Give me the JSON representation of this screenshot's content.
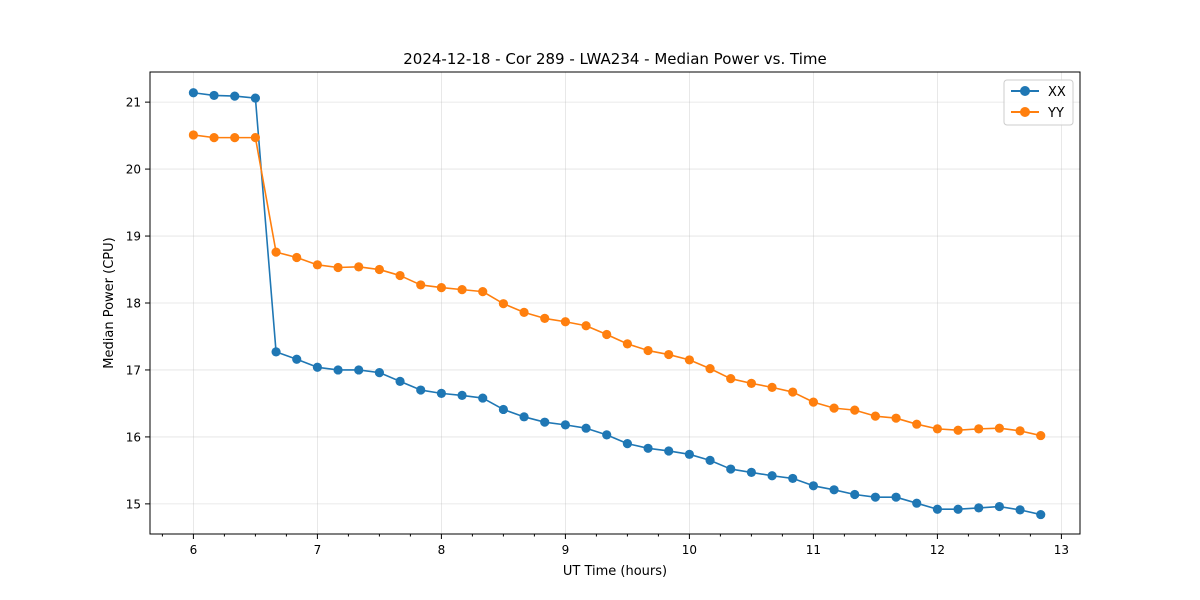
{
  "chart_data": {
    "type": "line",
    "title": "2024-12-18 - Cor 289 - LWA234 - Median Power vs. Time",
    "xlabel": "UT Time (hours)",
    "ylabel": "Median Power (CPU)",
    "xlim": [
      5.65,
      13.15
    ],
    "ylim": [
      14.55,
      21.45
    ],
    "xticks": [
      6,
      7,
      8,
      9,
      10,
      11,
      12,
      13
    ],
    "xtick_labels": [
      "6",
      "7",
      "8",
      "9",
      "10",
      "11",
      "12",
      "13"
    ],
    "yticks": [
      15,
      16,
      17,
      18,
      19,
      20,
      21
    ],
    "ytick_labels": [
      "15",
      "16",
      "17",
      "18",
      "19",
      "20",
      "21"
    ],
    "x_minor_step": 0.25,
    "grid": true,
    "legend_position": "top-right",
    "x": [
      6.0,
      6.1667,
      6.3333,
      6.5,
      6.6667,
      6.8333,
      7.0,
      7.1667,
      7.3333,
      7.5,
      7.6667,
      7.8333,
      8.0,
      8.1667,
      8.3333,
      8.5,
      8.6667,
      8.8333,
      9.0,
      9.1667,
      9.3333,
      9.5,
      9.6667,
      9.8333,
      10.0,
      10.1667,
      10.3333,
      10.5,
      10.6667,
      10.8333,
      11.0,
      11.1667,
      11.3333,
      11.5,
      11.6667,
      11.8333,
      12.0,
      12.1667,
      12.3333,
      12.5,
      12.6667,
      12.8333
    ],
    "series": [
      {
        "name": "XX",
        "color": "#1f77b4",
        "values": [
          21.14,
          21.1,
          21.09,
          21.06,
          17.27,
          17.16,
          17.04,
          17.0,
          17.0,
          16.96,
          16.83,
          16.7,
          16.65,
          16.62,
          16.58,
          16.41,
          16.3,
          16.22,
          16.18,
          16.13,
          16.03,
          15.9,
          15.83,
          15.79,
          15.74,
          15.65,
          15.52,
          15.47,
          15.42,
          15.38,
          15.27,
          15.21,
          15.14,
          15.1,
          15.1,
          15.01,
          14.92,
          14.92,
          14.94,
          14.96,
          14.91,
          14.84
        ]
      },
      {
        "name": "YY",
        "color": "#ff7f0e",
        "values": [
          20.51,
          20.47,
          20.47,
          20.47,
          18.76,
          18.68,
          18.57,
          18.53,
          18.54,
          18.5,
          18.41,
          18.27,
          18.23,
          18.2,
          18.17,
          17.99,
          17.86,
          17.77,
          17.72,
          17.66,
          17.53,
          17.39,
          17.29,
          17.23,
          17.15,
          17.02,
          16.87,
          16.8,
          16.74,
          16.67,
          16.52,
          16.43,
          16.4,
          16.31,
          16.28,
          16.19,
          16.12,
          16.1,
          16.12,
          16.13,
          16.09,
          16.02
        ]
      }
    ]
  }
}
